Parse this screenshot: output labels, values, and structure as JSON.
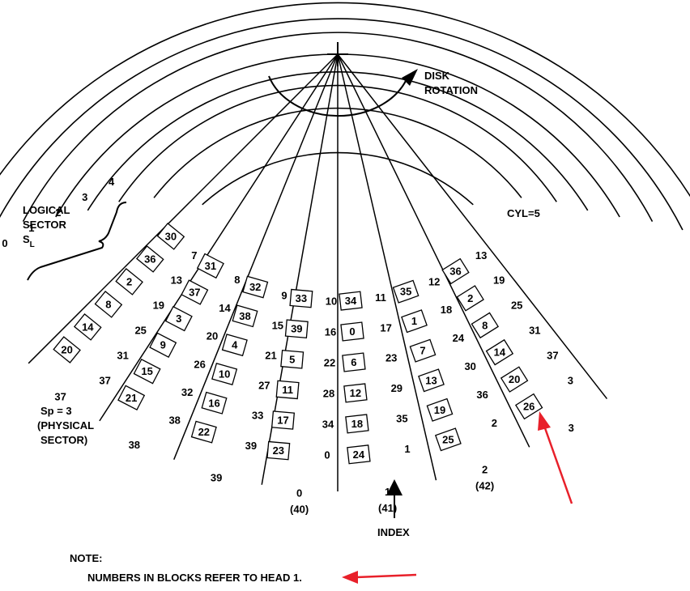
{
  "labels": {
    "disk_rotation_1": "DISK",
    "disk_rotation_2": "ROTATION",
    "logical_1": "LOGICAL",
    "logical_2": "SECTOR",
    "logical_3": "S",
    "logical_3_sub": "L",
    "sp_eq": "Sp = 3",
    "physical_1": "(PHYSICAL",
    "physical_2": "SECTOR)",
    "cyl": "CYL=5",
    "index": "INDEX",
    "note_title": "NOTE:",
    "note_body": "NUMBERS IN BLOCKS REFER TO HEAD 1."
  },
  "cylinder_labels": [
    "4",
    "3",
    "2",
    "1",
    "0"
  ],
  "columns": [
    {
      "rows": [
        [
          "13",
          "36"
        ],
        [
          "19",
          "2"
        ],
        [
          "25",
          "8"
        ],
        [
          "31",
          "14"
        ],
        [
          "37",
          "20"
        ],
        [
          "3",
          "26"
        ]
      ]
    },
    {
      "rows": [
        [
          "12",
          "35"
        ],
        [
          "18",
          "1"
        ],
        [
          "24",
          "7"
        ],
        [
          "30",
          "13"
        ],
        [
          "36",
          "19"
        ],
        [
          "2",
          "25"
        ]
      ]
    },
    {
      "rows": [
        [
          "11",
          "34"
        ],
        [
          "17",
          "0"
        ],
        [
          "23",
          "6"
        ],
        [
          "29",
          "12"
        ],
        [
          "35",
          "18"
        ],
        [
          "1",
          "24"
        ]
      ]
    },
    {
      "rows": [
        [
          "10",
          "33"
        ],
        [
          "16",
          "39"
        ],
        [
          "22",
          "5"
        ],
        [
          "28",
          "11"
        ],
        [
          "34",
          "17"
        ],
        [
          "0",
          "23"
        ]
      ]
    },
    {
      "rows": [
        [
          "9",
          "32"
        ],
        [
          "15",
          "38"
        ],
        [
          "21",
          "4"
        ],
        [
          "27",
          "10"
        ],
        [
          "33",
          "16"
        ],
        [
          "39",
          "22"
        ]
      ]
    },
    {
      "rows": [
        [
          "8",
          "31"
        ],
        [
          "14",
          "37"
        ],
        [
          "20",
          "3"
        ],
        [
          "26",
          "9"
        ],
        [
          "32",
          "15"
        ],
        [
          "38",
          "21"
        ]
      ]
    },
    {
      "rows": [
        [
          "7",
          "30"
        ],
        [
          "13",
          "36"
        ],
        [
          "19",
          "2"
        ],
        [
          "25",
          "8"
        ],
        [
          "31",
          "14"
        ],
        [
          "37",
          "20"
        ]
      ]
    }
  ],
  "physical_sectors": [
    {
      "main": "3",
      "sub": ""
    },
    {
      "main": "2",
      "sub": "(42)"
    },
    {
      "main": "1",
      "sub": "(41)"
    },
    {
      "main": "0",
      "sub": "(40)"
    },
    {
      "main": "39",
      "sub": ""
    },
    {
      "main": "38",
      "sub": ""
    },
    {
      "main": "37",
      "sub": ""
    }
  ],
  "colors": {
    "annotation_arrow": "#e8202a",
    "ink": "#000000"
  }
}
